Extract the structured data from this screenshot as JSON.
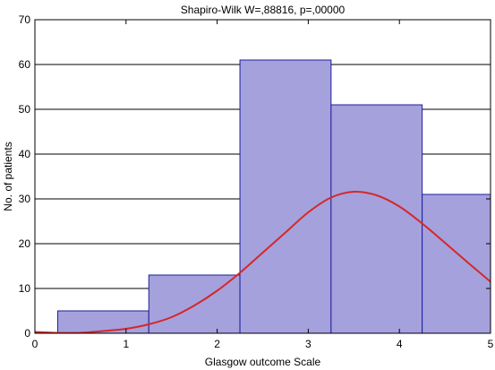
{
  "chart_data": {
    "type": "bar",
    "title": "Shapiro-Wilk W=,88816, p=,00000",
    "xlabel": "Glasgow outcome Scale",
    "ylabel": "No. of patients",
    "xlim": [
      0,
      5
    ],
    "ylim": [
      0,
      70
    ],
    "x_ticks": [
      "0",
      "1",
      "2",
      "3",
      "4",
      "5"
    ],
    "y_ticks": [
      "0",
      "10",
      "20",
      "30",
      "40",
      "50",
      "60",
      "70"
    ],
    "grid": true,
    "legend": false,
    "bins": [
      {
        "x0": 0.25,
        "x1": 1.25,
        "value": 5
      },
      {
        "x0": 1.25,
        "x1": 2.25,
        "value": 13
      },
      {
        "x0": 2.25,
        "x1": 3.25,
        "value": 61
      },
      {
        "x0": 3.25,
        "x1": 4.25,
        "value": 51
      },
      {
        "x0": 4.25,
        "x1": 5.25,
        "value": 31
      }
    ],
    "curve": {
      "type": "normal-fit",
      "color": "#d62728",
      "x": [
        0,
        0.25,
        0.5,
        0.75,
        1.0,
        1.25,
        1.5,
        1.75,
        2.0,
        2.25,
        2.5,
        2.75,
        3.0,
        3.25,
        3.5,
        3.75,
        4.0,
        4.25,
        4.5,
        4.75,
        5.0
      ],
      "y": [
        0.3,
        0.1,
        0.1,
        0.5,
        1.0,
        2.0,
        3.6,
        6.2,
        9.5,
        13.5,
        18.0,
        22.5,
        27.0,
        30.3,
        31.6,
        30.8,
        28.3,
        24.5,
        20.2,
        15.8,
        11.5
      ]
    },
    "colors": {
      "bar_fill": "#a5a1dd",
      "bar_stroke": "#1f1f9a",
      "grid": "#000000"
    }
  }
}
